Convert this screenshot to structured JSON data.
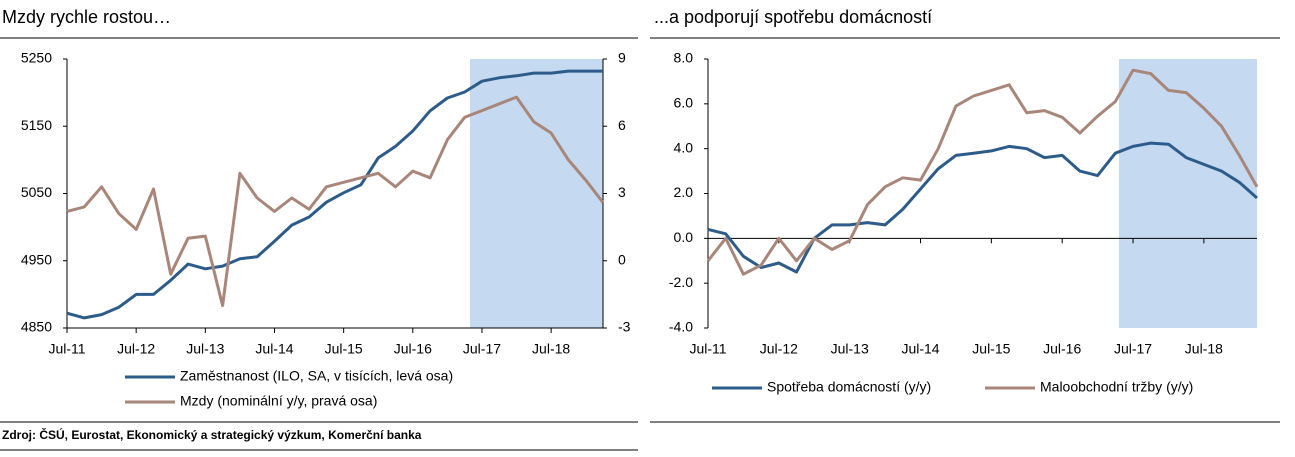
{
  "source": "Zdroj: ČSÚ, Eurostat, Ekonomický a strategický výzkum, Komerční banka",
  "chart_data": [
    {
      "type": "line",
      "title": "Mzdy rychle rostou…",
      "categories": [
        "Jul-11",
        null,
        null,
        null,
        "Jul-12",
        null,
        null,
        null,
        "Jul-13",
        null,
        null,
        null,
        "Jul-14",
        null,
        null,
        null,
        "Jul-15",
        null,
        null,
        null,
        "Jul-16",
        null,
        null,
        null,
        "Jul-17",
        null,
        null,
        null,
        "Jul-18",
        null,
        null,
        null
      ],
      "series": [
        {
          "name": "Zaměstnanost (ILO, SA, v tisících, levá osa)",
          "color": "#2e5c8a",
          "values": [
            4872,
            4865,
            4870,
            4881,
            4900,
            4900,
            4921,
            4945,
            4938,
            4942,
            4953,
            4956,
            4979,
            5003,
            5015,
            5037,
            5051,
            5063,
            5103,
            5120,
            5143,
            5173,
            5192,
            5201,
            5217,
            5222,
            5225,
            5229,
            5229,
            5232,
            5232,
            5232
          ]
        },
        {
          "name": "Mzdy (nominální y/y, pravá osa)",
          "color": "#a8877a",
          "axis": "y2",
          "values": [
            2.2,
            2.4,
            3.3,
            2.1,
            1.4,
            3.2,
            -0.6,
            1.0,
            1.1,
            -2.0,
            3.9,
            2.8,
            2.2,
            2.8,
            2.3,
            3.3,
            3.5,
            3.7,
            3.9,
            3.3,
            4.0,
            3.7,
            5.4,
            6.4,
            6.7,
            7.0,
            7.3,
            6.2,
            5.7,
            4.5,
            3.6,
            2.6
          ]
        }
      ],
      "ylim": [
        4850,
        5250
      ],
      "yticks": [
        4850,
        4950,
        5050,
        5150,
        5250
      ],
      "y2lim": [
        -3,
        9
      ],
      "y2ticks": [
        -3,
        0,
        3,
        6,
        9
      ]
    },
    {
      "type": "line",
      "title": "...a podporují spotřebu domácností",
      "categories": [
        "Jul-11",
        null,
        null,
        null,
        "Jul-12",
        null,
        null,
        null,
        "Jul-13",
        null,
        null,
        null,
        "Jul-14",
        null,
        null,
        null,
        "Jul-15",
        null,
        null,
        null,
        "Jul-16",
        null,
        null,
        null,
        "Jul-17",
        null,
        null,
        null,
        "Jul-18",
        null,
        null,
        null
      ],
      "series": [
        {
          "name": "Spotřeba domácností (y/y)",
          "color": "#2e5c8a",
          "values": [
            0.4,
            0.2,
            -0.8,
            -1.3,
            -1.1,
            -1.5,
            0.0,
            0.6,
            0.6,
            0.7,
            0.6,
            1.3,
            2.2,
            3.1,
            3.7,
            3.8,
            3.9,
            4.1,
            4.0,
            3.6,
            3.7,
            3.0,
            2.8,
            3.8,
            4.1,
            4.25,
            4.2,
            3.6,
            3.3,
            3.0,
            2.5,
            1.8
          ]
        },
        {
          "name": "Maloobchodní tržby (y/y)",
          "color": "#a8877a",
          "values": [
            -1.0,
            0.0,
            -1.6,
            -1.2,
            0.0,
            -1.0,
            0.0,
            -0.5,
            -0.1,
            1.5,
            2.3,
            2.7,
            2.6,
            4.0,
            5.9,
            6.35,
            6.6,
            6.85,
            5.6,
            5.7,
            5.4,
            4.7,
            5.45,
            6.1,
            7.5,
            7.35,
            6.6,
            6.5,
            5.8,
            5.0,
            3.7,
            2.3
          ]
        }
      ],
      "ylim": [
        -4,
        8
      ],
      "yticks": [
        {
          "value": -4,
          "label": "-4.0"
        },
        {
          "value": -2,
          "label": "-2.0"
        },
        {
          "value": 0,
          "label": "0.0"
        },
        {
          "value": 2,
          "label": "2.0"
        },
        {
          "value": 4,
          "label": "4.0"
        },
        {
          "value": 6,
          "label": "6.0"
        },
        {
          "value": 8,
          "label": "8.0"
        }
      ]
    }
  ]
}
